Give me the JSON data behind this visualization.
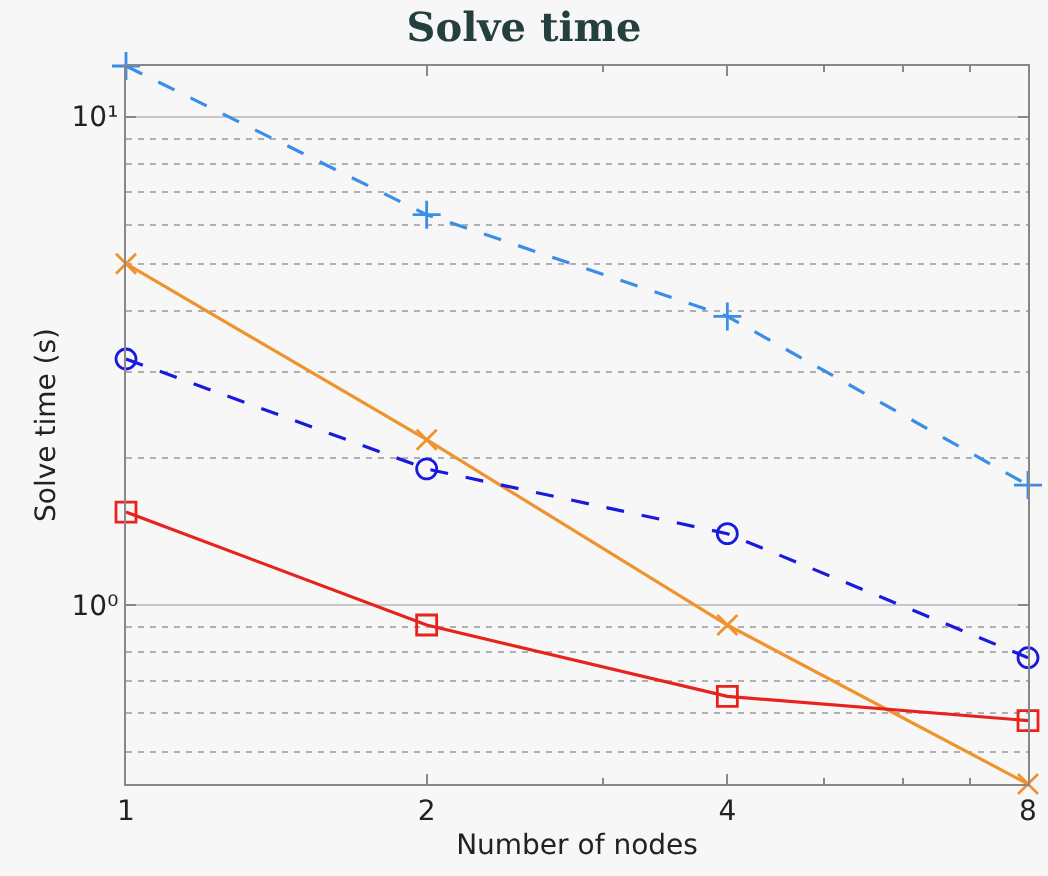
{
  "chart_data": {
    "type": "line",
    "title": "Solve time",
    "xlabel": "Number of nodes",
    "ylabel": "Solve time (s)",
    "x": [
      1,
      2,
      4,
      8
    ],
    "log": "xy",
    "grid": "y",
    "xlim": [
      1,
      8
    ],
    "xticks": [
      1,
      2,
      4,
      8
    ],
    "ylim": [
      0.43,
      12.7
    ],
    "yticks": [
      {
        "value": 1,
        "label": "10⁰"
      },
      {
        "value": 10,
        "label": "10¹"
      }
    ],
    "series": [
      {
        "color": "#3a8ee6",
        "values": [
          12.7,
          6.3,
          3.9,
          1.76
        ],
        "line_style": "dashed",
        "marker": "cross"
      },
      {
        "color": "#f0922e",
        "values": [
          5.0,
          2.18,
          0.91,
          0.43
        ],
        "line_style": "solid",
        "marker": "x"
      },
      {
        "color": "#1a1adf",
        "values": [
          3.19,
          1.9,
          1.4,
          0.78
        ],
        "line_style": "dashed",
        "marker": "circle"
      },
      {
        "color": "#e8231e",
        "values": [
          1.55,
          0.91,
          0.65,
          0.58
        ],
        "line_style": "solid",
        "marker": "square"
      }
    ]
  }
}
